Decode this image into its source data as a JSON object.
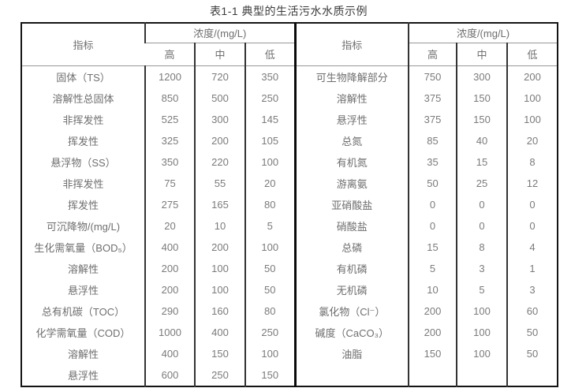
{
  "title": "表1-1 典型的生活污水水质示例",
  "colors": {
    "background": "#ffffff",
    "outer_border": "#141414",
    "center_divider": "#0a0a0a",
    "grid_vertical": "#333333",
    "grid_horizontal": "#979797",
    "title_text": "#3b3b3b",
    "cell_text": "#7b7b7b",
    "label_text": "#6f6f6f"
  },
  "table": {
    "header": {
      "indicator": "指标",
      "concentration": "浓度/(mg/L)",
      "high": "高",
      "mid": "中",
      "low": "低"
    },
    "rows": [
      {
        "left": {
          "label": "固体（TS）",
          "high": "1200",
          "mid": "720",
          "low": "350"
        },
        "right": {
          "label": "可生物降解部分",
          "high": "750",
          "mid": "300",
          "low": "200"
        }
      },
      {
        "left": {
          "label": "溶解性总固体",
          "high": "850",
          "mid": "500",
          "low": "250"
        },
        "right": {
          "label": "溶解性",
          "high": "375",
          "mid": "150",
          "low": "100"
        }
      },
      {
        "left": {
          "label": "非挥发性",
          "high": "525",
          "mid": "300",
          "low": "145"
        },
        "right": {
          "label": "悬浮性",
          "high": "375",
          "mid": "150",
          "low": "100"
        }
      },
      {
        "left": {
          "label": "挥发性",
          "high": "325",
          "mid": "200",
          "low": "105"
        },
        "right": {
          "label": "总氮",
          "high": "85",
          "mid": "40",
          "low": "20"
        }
      },
      {
        "left": {
          "label": "悬浮物（SS）",
          "high": "350",
          "mid": "220",
          "low": "100"
        },
        "right": {
          "label": "有机氮",
          "high": "35",
          "mid": "15",
          "low": "8"
        }
      },
      {
        "left": {
          "label": "非挥发性",
          "high": "75",
          "mid": "55",
          "low": "20"
        },
        "right": {
          "label": "游离氨",
          "high": "50",
          "mid": "25",
          "low": "12"
        }
      },
      {
        "left": {
          "label": "挥发性",
          "high": "275",
          "mid": "165",
          "low": "80"
        },
        "right": {
          "label": "亚硝酸盐",
          "high": "0",
          "mid": "0",
          "low": "0"
        }
      },
      {
        "left": {
          "label": "可沉降物/(mg/L)",
          "high": "20",
          "mid": "10",
          "low": "5"
        },
        "right": {
          "label": "硝酸盐",
          "high": "0",
          "mid": "0",
          "low": "0"
        }
      },
      {
        "left": {
          "label": "生化需氧量（BOD₅）",
          "high": "400",
          "mid": "200",
          "low": "100"
        },
        "right": {
          "label": "总磷",
          "high": "15",
          "mid": "8",
          "low": "4"
        }
      },
      {
        "left": {
          "label": "溶解性",
          "high": "200",
          "mid": "100",
          "low": "50"
        },
        "right": {
          "label": "有机磷",
          "high": "5",
          "mid": "3",
          "low": "1"
        }
      },
      {
        "left": {
          "label": "悬浮性",
          "high": "200",
          "mid": "100",
          "low": "50"
        },
        "right": {
          "label": "无机磷",
          "high": "10",
          "mid": "5",
          "low": "3"
        }
      },
      {
        "left": {
          "label": "总有机碳（TOC）",
          "high": "290",
          "mid": "160",
          "low": "80"
        },
        "right": {
          "label": "氯化物（Cl⁻）",
          "high": "200",
          "mid": "100",
          "low": "60"
        }
      },
      {
        "left": {
          "label": "化学需氧量（COD）",
          "high": "1000",
          "mid": "400",
          "low": "250"
        },
        "right": {
          "label": "碱度（CaCO₃）",
          "high": "200",
          "mid": "100",
          "low": "50"
        }
      },
      {
        "left": {
          "label": "溶解性",
          "high": "400",
          "mid": "150",
          "low": "100"
        },
        "right": {
          "label": "油脂",
          "high": "150",
          "mid": "100",
          "low": "50"
        }
      },
      {
        "left": {
          "label": "悬浮性",
          "high": "600",
          "mid": "250",
          "low": "150"
        },
        "right": {
          "label": "",
          "high": "",
          "mid": "",
          "low": ""
        }
      }
    ]
  }
}
